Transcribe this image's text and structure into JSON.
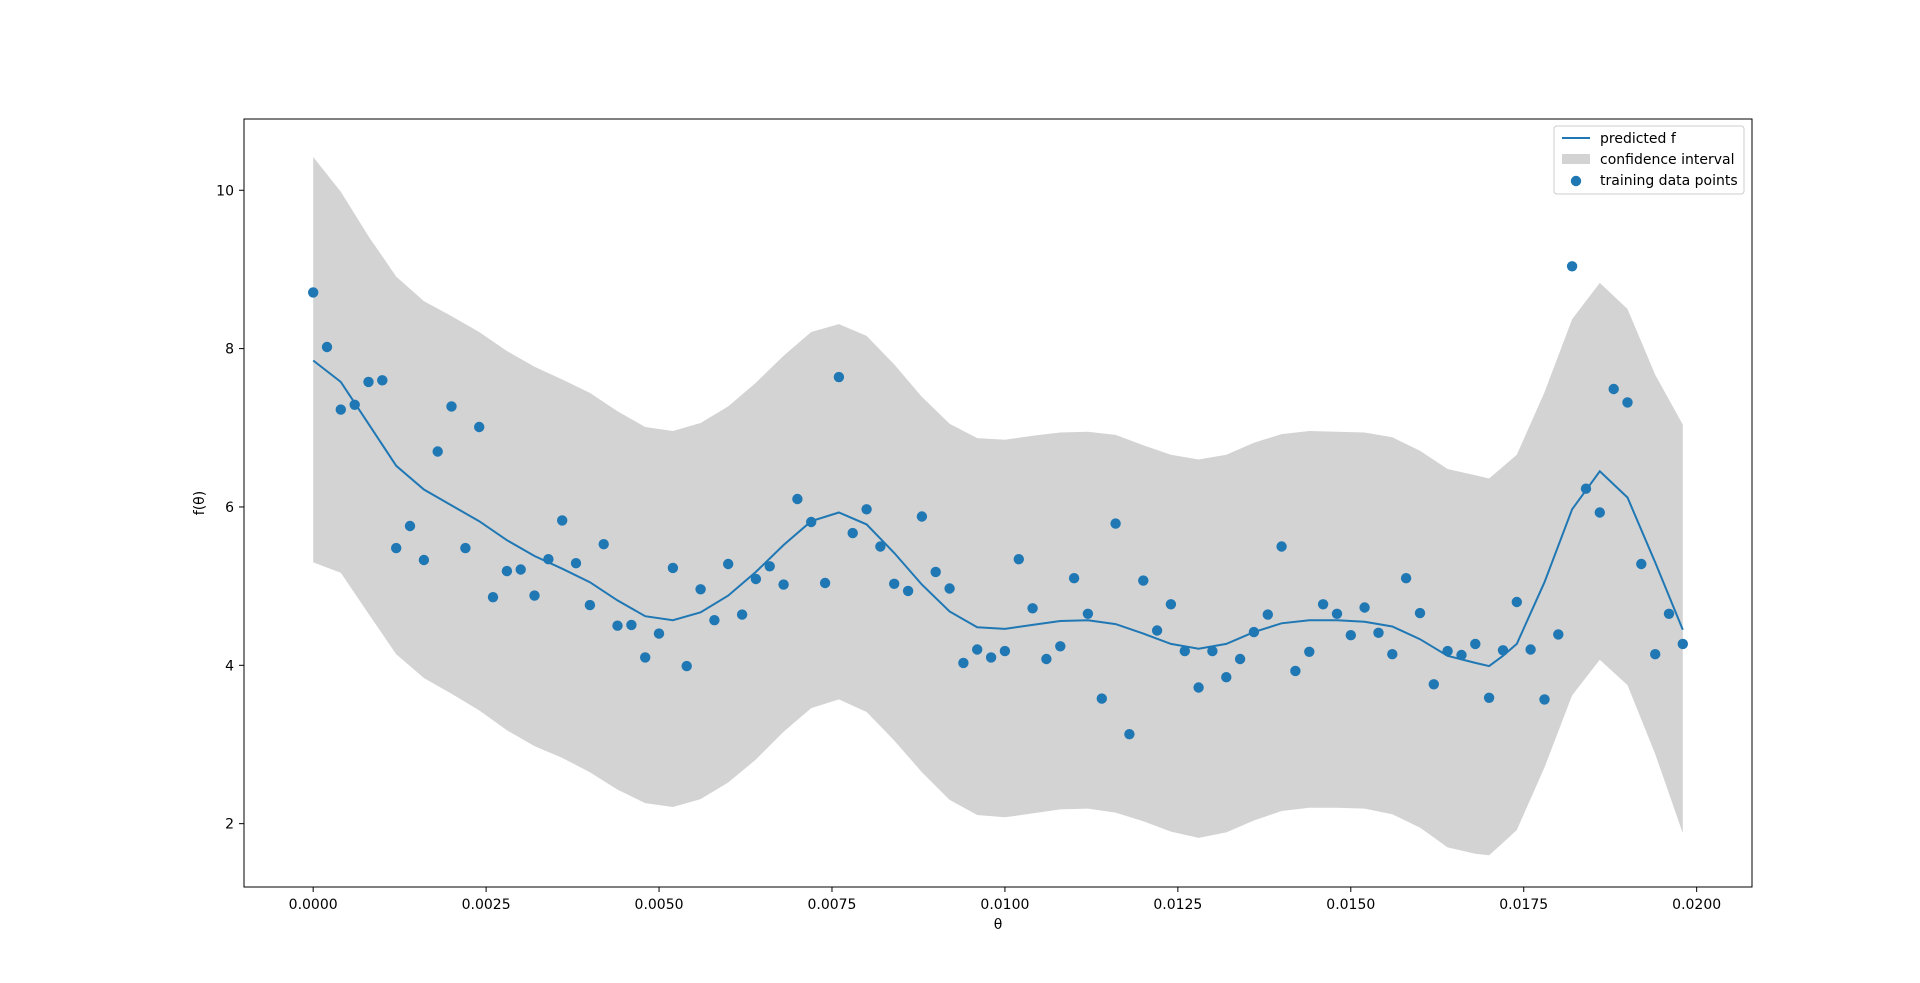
{
  "chart_data": {
    "type": "line",
    "xlabel": "θ",
    "ylabel": "f(θ)",
    "xlim": [
      -0.001,
      0.0208
    ],
    "ylim": [
      1.2,
      10.9
    ],
    "xticks": [
      0.0,
      0.0025,
      0.005,
      0.0075,
      0.01,
      0.0125,
      0.015,
      0.0175,
      0.02
    ],
    "xtick_labels": [
      "0.0000",
      "0.0025",
      "0.0050",
      "0.0075",
      "0.0100",
      "0.0125",
      "0.0150",
      "0.0175",
      "0.0200"
    ],
    "yticks": [
      2,
      4,
      6,
      8,
      10
    ],
    "ytick_labels": [
      "2",
      "4",
      "6",
      "8",
      "10"
    ],
    "legend_position": "top-right",
    "colors": {
      "line": "#1f77b4",
      "points": "#1f77b4",
      "band": "#d3d3d3"
    },
    "legend": [
      {
        "label": "predicted f",
        "kind": "line"
      },
      {
        "label": "confidence interval",
        "kind": "band"
      },
      {
        "label": "training data points",
        "kind": "point"
      }
    ],
    "predicted_f": {
      "x": [
        0.0,
        0.0004,
        0.0008,
        0.0012,
        0.0016,
        0.002,
        0.0024,
        0.0028,
        0.0032,
        0.0036,
        0.004,
        0.0044,
        0.0048,
        0.0052,
        0.0056,
        0.006,
        0.0064,
        0.0068,
        0.0072,
        0.0076,
        0.008,
        0.0084,
        0.0088,
        0.0092,
        0.0096,
        0.01,
        0.0104,
        0.0108,
        0.0112,
        0.0116,
        0.012,
        0.0124,
        0.0128,
        0.0132,
        0.0136,
        0.014,
        0.0144,
        0.0148,
        0.0152,
        0.0156,
        0.016,
        0.0164,
        0.0168,
        0.017,
        0.0172,
        0.0174,
        0.0178,
        0.0182,
        0.0186,
        0.019,
        0.0194,
        0.0198
      ],
      "y": [
        7.85,
        7.58,
        7.05,
        6.52,
        6.22,
        6.02,
        5.82,
        5.58,
        5.38,
        5.22,
        5.05,
        4.82,
        4.62,
        4.57,
        4.67,
        4.88,
        5.18,
        5.52,
        5.82,
        5.93,
        5.78,
        5.42,
        5.02,
        4.68,
        4.48,
        4.46,
        4.51,
        4.56,
        4.57,
        4.52,
        4.4,
        4.27,
        4.21,
        4.27,
        4.42,
        4.53,
        4.57,
        4.57,
        4.55,
        4.49,
        4.33,
        4.12,
        4.03,
        3.99,
        4.12,
        4.27,
        5.05,
        5.97,
        6.45,
        6.12,
        5.3,
        4.45
      ]
    },
    "confidence_interval": {
      "x": [
        0.0,
        0.0004,
        0.0008,
        0.0012,
        0.0016,
        0.002,
        0.0024,
        0.0028,
        0.0032,
        0.0036,
        0.004,
        0.0044,
        0.0048,
        0.0052,
        0.0056,
        0.006,
        0.0064,
        0.0068,
        0.0072,
        0.0076,
        0.008,
        0.0084,
        0.0088,
        0.0092,
        0.0096,
        0.01,
        0.0104,
        0.0108,
        0.0112,
        0.0116,
        0.012,
        0.0124,
        0.0128,
        0.0132,
        0.0136,
        0.014,
        0.0144,
        0.0148,
        0.0152,
        0.0156,
        0.016,
        0.0164,
        0.0168,
        0.017,
        0.0172,
        0.0174,
        0.0178,
        0.0182,
        0.0186,
        0.019,
        0.0194,
        0.0198
      ],
      "lower": [
        5.3,
        5.17,
        4.65,
        4.14,
        3.84,
        3.64,
        3.43,
        3.18,
        2.98,
        2.83,
        2.65,
        2.43,
        2.26,
        2.21,
        2.31,
        2.52,
        2.81,
        3.16,
        3.46,
        3.57,
        3.41,
        3.05,
        2.65,
        2.3,
        2.11,
        2.08,
        2.13,
        2.18,
        2.19,
        2.14,
        2.03,
        1.9,
        1.82,
        1.89,
        2.04,
        2.16,
        2.2,
        2.2,
        2.19,
        2.12,
        1.95,
        1.7,
        1.62,
        1.6,
        1.76,
        1.92,
        2.71,
        3.62,
        4.07,
        3.75,
        2.88,
        1.88
      ],
      "upper": [
        10.42,
        9.98,
        9.42,
        8.91,
        8.6,
        8.41,
        8.21,
        7.97,
        7.77,
        7.61,
        7.44,
        7.21,
        7.01,
        6.96,
        7.06,
        7.27,
        7.57,
        7.91,
        8.21,
        8.31,
        8.16,
        7.8,
        7.39,
        7.05,
        6.87,
        6.85,
        6.9,
        6.94,
        6.95,
        6.91,
        6.78,
        6.66,
        6.6,
        6.66,
        6.81,
        6.92,
        6.96,
        6.95,
        6.94,
        6.88,
        6.71,
        6.48,
        6.4,
        6.36,
        6.51,
        6.66,
        7.45,
        8.37,
        8.83,
        8.5,
        7.67,
        7.04
      ]
    },
    "training_data_points": {
      "x": [
        0.0,
        0.0002,
        0.0004,
        0.0006,
        0.0008,
        0.001,
        0.0012,
        0.0014,
        0.0016,
        0.0018,
        0.002,
        0.0022,
        0.0024,
        0.0026,
        0.0028,
        0.003,
        0.0032,
        0.0034,
        0.0036,
        0.0038,
        0.004,
        0.0042,
        0.0044,
        0.0046,
        0.0048,
        0.005,
        0.0052,
        0.0054,
        0.0056,
        0.0058,
        0.006,
        0.0062,
        0.0064,
        0.0066,
        0.0068,
        0.007,
        0.0072,
        0.0074,
        0.0076,
        0.0078,
        0.008,
        0.0082,
        0.0084,
        0.0086,
        0.0088,
        0.009,
        0.0092,
        0.0094,
        0.0096,
        0.0098,
        0.01,
        0.0102,
        0.0104,
        0.0106,
        0.0108,
        0.011,
        0.0112,
        0.0114,
        0.0116,
        0.0118,
        0.012,
        0.0122,
        0.0124,
        0.0126,
        0.0128,
        0.013,
        0.0132,
        0.0134,
        0.0136,
        0.0138,
        0.014,
        0.0142,
        0.0144,
        0.0146,
        0.0148,
        0.015,
        0.0152,
        0.0154,
        0.0156,
        0.0158,
        0.016,
        0.0162,
        0.0164,
        0.0166,
        0.0168,
        0.017,
        0.0172,
        0.0174,
        0.0176,
        0.0178,
        0.018,
        0.0182,
        0.0184,
        0.0186,
        0.0188,
        0.019,
        0.0192,
        0.0194,
        0.0196,
        0.0198
      ],
      "y": [
        8.71,
        8.02,
        7.23,
        7.29,
        7.58,
        7.6,
        5.48,
        5.76,
        5.33,
        6.7,
        7.27,
        5.48,
        7.01,
        4.86,
        5.19,
        5.21,
        4.88,
        5.34,
        5.83,
        5.29,
        4.76,
        5.53,
        4.5,
        4.51,
        4.1,
        4.4,
        5.23,
        3.99,
        4.96,
        4.57,
        5.28,
        4.64,
        5.09,
        5.25,
        5.02,
        6.1,
        5.81,
        5.04,
        7.64,
        5.67,
        5.97,
        5.5,
        5.03,
        4.94,
        5.88,
        5.18,
        4.97,
        4.03,
        4.2,
        4.1,
        4.18,
        5.34,
        4.72,
        4.08,
        4.24,
        5.1,
        4.65,
        3.58,
        5.79,
        3.13,
        5.07,
        4.44,
        4.77,
        4.18,
        3.72,
        4.18,
        3.85,
        4.08,
        4.42,
        4.64,
        5.5,
        3.93,
        4.17,
        4.77,
        4.65,
        4.38,
        4.73,
        4.41,
        4.14,
        5.1,
        4.66,
        3.76,
        4.18,
        4.13,
        4.27,
        3.59,
        4.19,
        4.8,
        4.2,
        3.57,
        4.39,
        9.04,
        6.23,
        5.93,
        7.49,
        7.32,
        5.28,
        4.14,
        4.65,
        4.27
      ]
    }
  }
}
